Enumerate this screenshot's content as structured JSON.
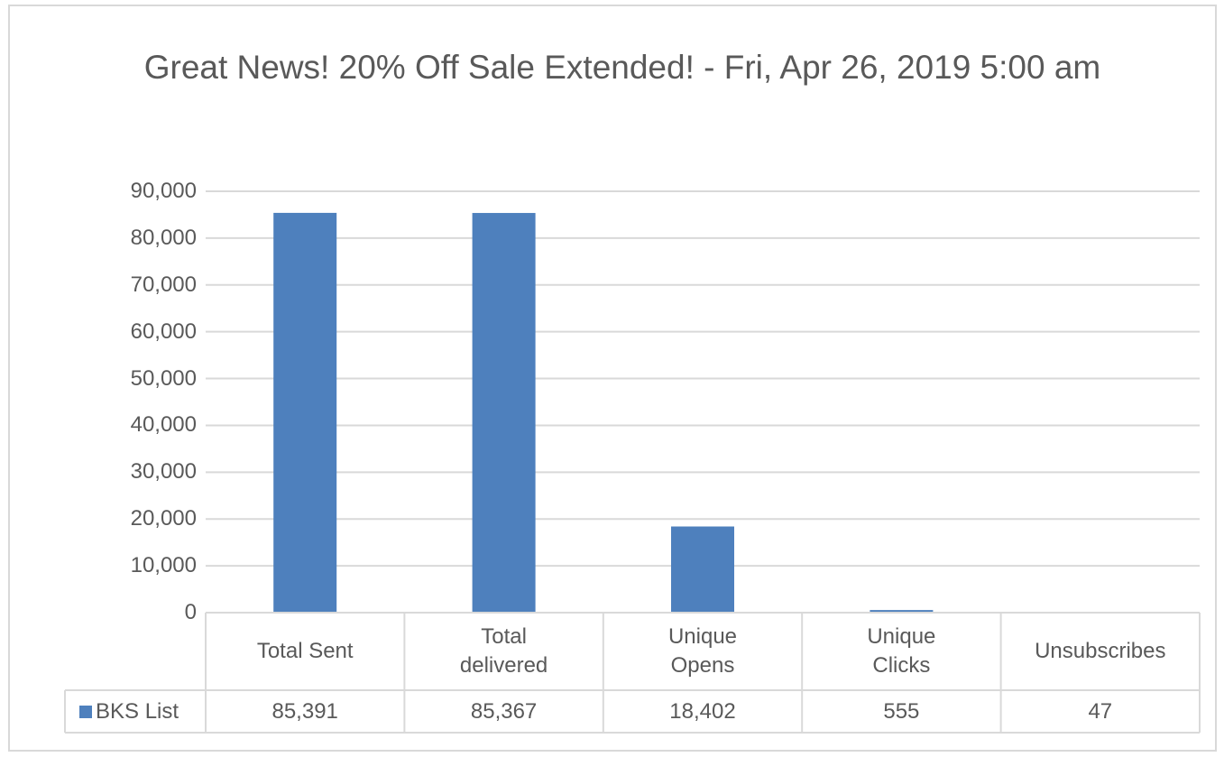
{
  "chart_data": {
    "type": "bar",
    "title": "Great News! 20% Off Sale Extended! - Fri, Apr 26, 2019 5:00 am",
    "categories": [
      "Total Sent",
      "Total delivered",
      "Unique Opens",
      "Unique Clicks",
      "Unsubscribes"
    ],
    "series": [
      {
        "name": "BKS List",
        "color": "#4e80bd",
        "values": [
          85391,
          85367,
          18402,
          555,
          47
        ],
        "value_labels": [
          "85,391",
          "85,367",
          "18,402",
          "555",
          "47"
        ]
      }
    ],
    "ylim": [
      0,
      90000
    ],
    "yticks": [
      0,
      {
        "value": 10000,
        "label": "10,000"
      },
      {
        "value": 20000,
        "label": "20,000"
      },
      {
        "value": 30000,
        "label": "30,000"
      },
      {
        "value": 40000,
        "label": "40,000"
      },
      {
        "value": 50000,
        "label": "50,000"
      },
      {
        "value": 60000,
        "label": "60,000"
      },
      {
        "value": 70000,
        "label": "70,000"
      },
      {
        "value": 80000,
        "label": "80,000"
      },
      {
        "value": 90000,
        "label": "90,000"
      }
    ],
    "grid": true,
    "data_table": true
  }
}
